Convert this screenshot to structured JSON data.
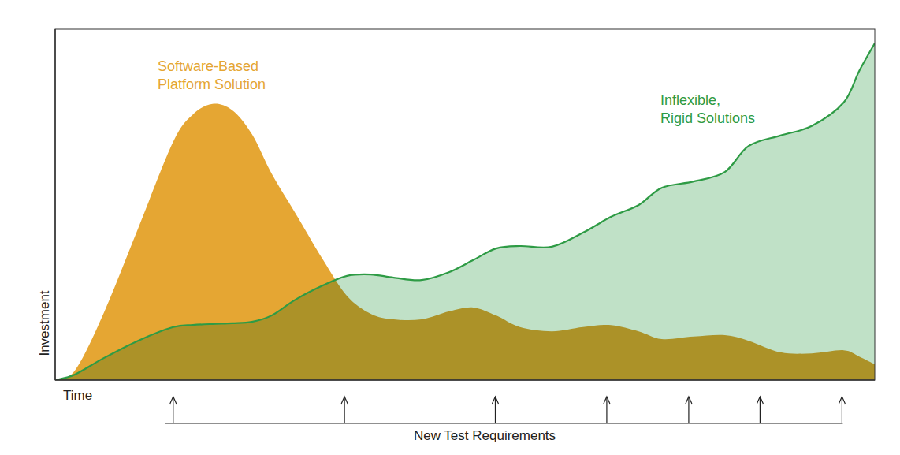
{
  "chart_data": {
    "type": "area",
    "x_label": "Time",
    "y_label": "Investment",
    "xlim": [
      0,
      100
    ],
    "ylim": [
      0,
      100
    ],
    "xticks": [],
    "yticks": [],
    "tick_labels": false,
    "grid": false,
    "x": [
      0,
      2.4,
      5.8,
      10.1,
      14.4,
      16.8,
      19.2,
      21.6,
      24,
      26.4,
      29.3,
      32.7,
      35.6,
      38.5,
      41.3,
      44.7,
      48.1,
      51,
      53.8,
      56.7,
      60.6,
      64.4,
      67.8,
      71.2,
      74,
      77.9,
      81.7,
      84.6,
      88.5,
      92.3,
      96.2,
      98.1,
      100
    ],
    "series": [
      {
        "name": "Software-Based\nPlatform Solution",
        "color": "#e5a633",
        "values": [
          0,
          2.7,
          18.4,
          43.1,
          67.9,
          75.7,
          78.7,
          76.9,
          70.1,
          58.9,
          47.6,
          34.2,
          24,
          18.9,
          17.3,
          17.3,
          19.6,
          20.7,
          18.4,
          15.1,
          13.9,
          15.1,
          15.7,
          13.9,
          11.7,
          12.4,
          12.8,
          11.2,
          7.9,
          7.6,
          8.5,
          6.7,
          4.5
        ]
      },
      {
        "name": "Inflexible,\nRigid Solutions",
        "color": "#2e9b45",
        "values": [
          0,
          1.6,
          6.1,
          11.2,
          15.1,
          15.7,
          16,
          16.2,
          16.6,
          18.4,
          22.9,
          27,
          29.7,
          30.1,
          29.2,
          28.5,
          30.8,
          34.2,
          37.5,
          38.2,
          38,
          42,
          46.5,
          49.9,
          54.8,
          56.6,
          59.3,
          66.7,
          69.7,
          72.4,
          79.1,
          88.1,
          96
        ]
      }
    ],
    "requirement_label": "New Test Requirements",
    "requirement_times": [
      14.4,
      35.3,
      53.7,
      67.3,
      77.3,
      86,
      96
    ]
  }
}
